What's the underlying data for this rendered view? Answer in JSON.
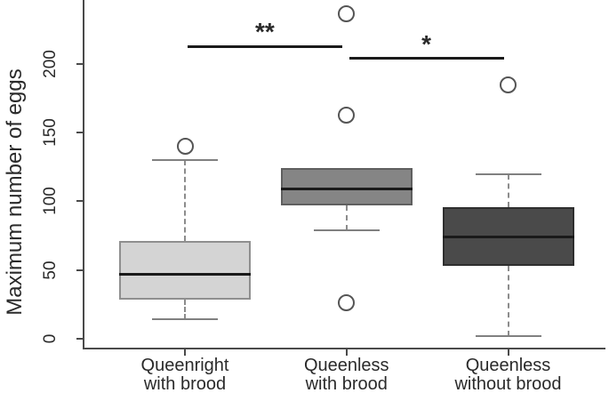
{
  "figure": {
    "kind": "statistical-boxplot",
    "background": "#ffffff"
  },
  "chart_data": {
    "type": "boxplot",
    "title": "",
    "xlabel": "",
    "ylabel": "Maximum number of eggs",
    "ylim": [
      0,
      245
    ],
    "y_ticks": [
      0,
      50,
      100,
      150,
      200
    ],
    "grid": false,
    "legend": null,
    "categories": [
      "Queenright with brood",
      "Queenless with brood",
      "Queenless without brood"
    ],
    "category_label_lines": [
      [
        "Queenright",
        "with brood"
      ],
      [
        "Queenless",
        "with brood"
      ],
      [
        "Queenless",
        "without brood"
      ]
    ],
    "boxes": [
      {
        "category": "Queenright with brood",
        "whisker_low": 14,
        "q1": 28,
        "median": 47,
        "q3": 71,
        "whisker_high": 130,
        "outliers": [
          140
        ],
        "fill": "#d4d4d4",
        "border": "#8f8f8f"
      },
      {
        "category": "Queenless with brood",
        "whisker_low": 79,
        "q1": 97,
        "median": 109,
        "q3": 124,
        "whisker_high": null,
        "outliers": [
          26,
          163,
          237
        ],
        "fill": "#858585",
        "border": "#5f5f5f"
      },
      {
        "category": "Queenless without brood",
        "whisker_low": 2,
        "q1": 53,
        "median": 74,
        "q3": 96,
        "whisker_high": 120,
        "outliers": [
          185
        ],
        "fill": "#4a4a4a",
        "border": "#2e2e2e"
      }
    ],
    "significance": [
      {
        "between": [
          "Queenright with brood",
          "Queenless with brood"
        ],
        "label": "**",
        "height_value": 213
      },
      {
        "between": [
          "Queenless with brood",
          "Queenless without brood"
        ],
        "label": "*",
        "height_value": 204
      }
    ],
    "colors": {
      "axis": "#4a4a4a",
      "text": "#2a2a2a",
      "median_line": "#1a1a1a",
      "whisker": "#8c8c8c",
      "whisker_cap": "#808080",
      "outlier_stroke": "#555555",
      "significance_bar": "#1a1a1a"
    }
  }
}
